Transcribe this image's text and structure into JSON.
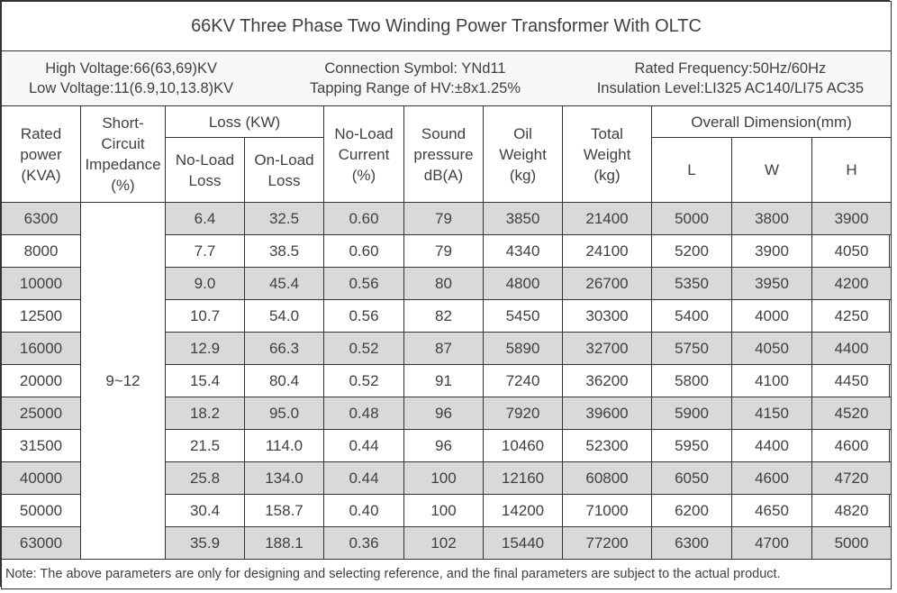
{
  "title": "66KV Three Phase Two Winding Power Transformer With OLTC",
  "specs": {
    "col1": [
      "High Voltage:66(63,69)KV",
      "Low Voltage:11(6.9,10,13.8)KV"
    ],
    "col2": [
      "Connection Symbol: YNd11",
      "Tapping Range of HV:±8x1.25%"
    ],
    "col3": [
      "Rated Frequency:50Hz/60Hz",
      "Insulation Level:LI325 AC140/LI75 AC35"
    ]
  },
  "headers": {
    "rated_power": "Rated\npower\n(KVA)",
    "impedance": "Short-\nCircuit\nImpedance\n(%)",
    "loss_group": "Loss (KW)",
    "no_load_loss": "No-Load\nLoss",
    "on_load_loss": "On-Load\nLoss",
    "no_load_current": "No-Load\nCurrent\n(%)",
    "sound": "Sound\npressure\ndB(A)",
    "oil_weight": "Oil\nWeight\n(kg)",
    "total_weight": "Total\nWeight\n(kg)",
    "dimension_group": "Overall Dimension(mm)",
    "dim_l": "L",
    "dim_w": "W",
    "dim_h": "H"
  },
  "impedance_value": "9~12",
  "rows": [
    [
      "6300",
      "6.4",
      "32.5",
      "0.60",
      "79",
      "3850",
      "21400",
      "5000",
      "3800",
      "3900"
    ],
    [
      "8000",
      "7.7",
      "38.5",
      "0.60",
      "79",
      "4340",
      "24100",
      "5200",
      "3900",
      "4050"
    ],
    [
      "10000",
      "9.0",
      "45.4",
      "0.56",
      "80",
      "4800",
      "26700",
      "5350",
      "3950",
      "4200"
    ],
    [
      "12500",
      "10.7",
      "54.0",
      "0.56",
      "82",
      "5450",
      "30300",
      "5400",
      "4000",
      "4250"
    ],
    [
      "16000",
      "12.9",
      "66.3",
      "0.52",
      "87",
      "5890",
      "32700",
      "5750",
      "4050",
      "4400"
    ],
    [
      "20000",
      "15.4",
      "80.4",
      "0.52",
      "91",
      "7240",
      "36200",
      "5800",
      "4100",
      "4450"
    ],
    [
      "25000",
      "18.2",
      "95.0",
      "0.48",
      "96",
      "7920",
      "39600",
      "5900",
      "4150",
      "4520"
    ],
    [
      "31500",
      "21.5",
      "114.0",
      "0.44",
      "96",
      "10460",
      "52300",
      "5950",
      "4400",
      "4600"
    ],
    [
      "40000",
      "25.8",
      "134.0",
      "0.44",
      "100",
      "12160",
      "60800",
      "6050",
      "4600",
      "4720"
    ],
    [
      "50000",
      "30.4",
      "158.7",
      "0.40",
      "100",
      "14200",
      "71000",
      "6200",
      "4650",
      "4820"
    ],
    [
      "63000",
      "35.9",
      "188.1",
      "0.36",
      "102",
      "15440",
      "77200",
      "6300",
      "4700",
      "5000"
    ]
  ],
  "note": "Note: The above parameters are only for designing and selecting  reference, and the final parameters are subject to the actual product."
}
